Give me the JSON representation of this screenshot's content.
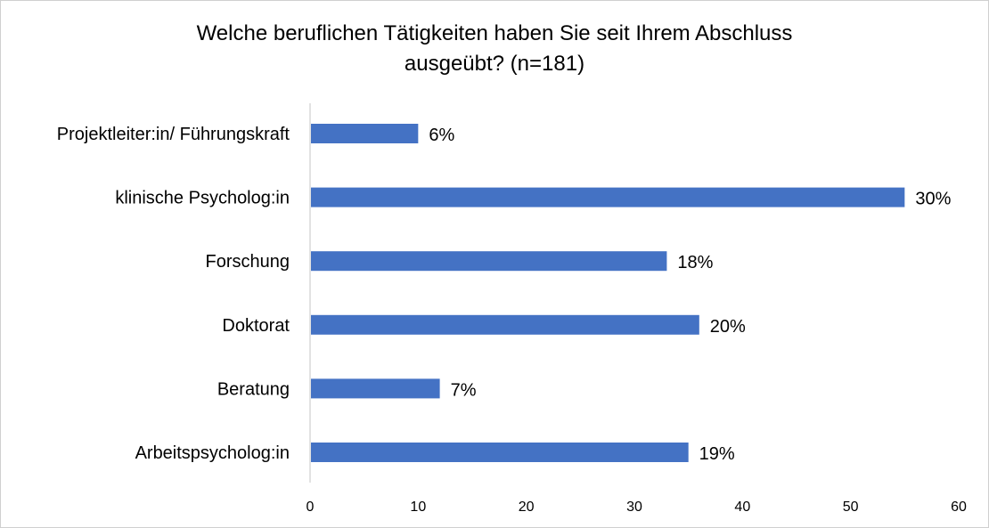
{
  "chart_data": {
    "type": "bar",
    "orientation": "horizontal",
    "title_line1": "Welche beruflichen Tätigkeiten haben Sie seit Ihrem Abschluss",
    "title_line2": "ausgeübt? (n=181)",
    "categories": [
      "Projektleiter:in/ Führungskraft",
      "klinische Psycholog:in",
      "Forschung",
      "Doktorat",
      "Beratung",
      "Arbeitspsycholog:in"
    ],
    "values": [
      10,
      55,
      33,
      36,
      12,
      35
    ],
    "data_labels": [
      "6%",
      "30%",
      "18%",
      "20%",
      "7%",
      "19%"
    ],
    "xlim": [
      0,
      60
    ],
    "xticks": [
      "0",
      "10",
      "20",
      "30",
      "40",
      "50",
      "60"
    ],
    "bar_color": "#4472C4",
    "axis_color": "#d9d9d9",
    "grid": false,
    "legend": "none"
  }
}
